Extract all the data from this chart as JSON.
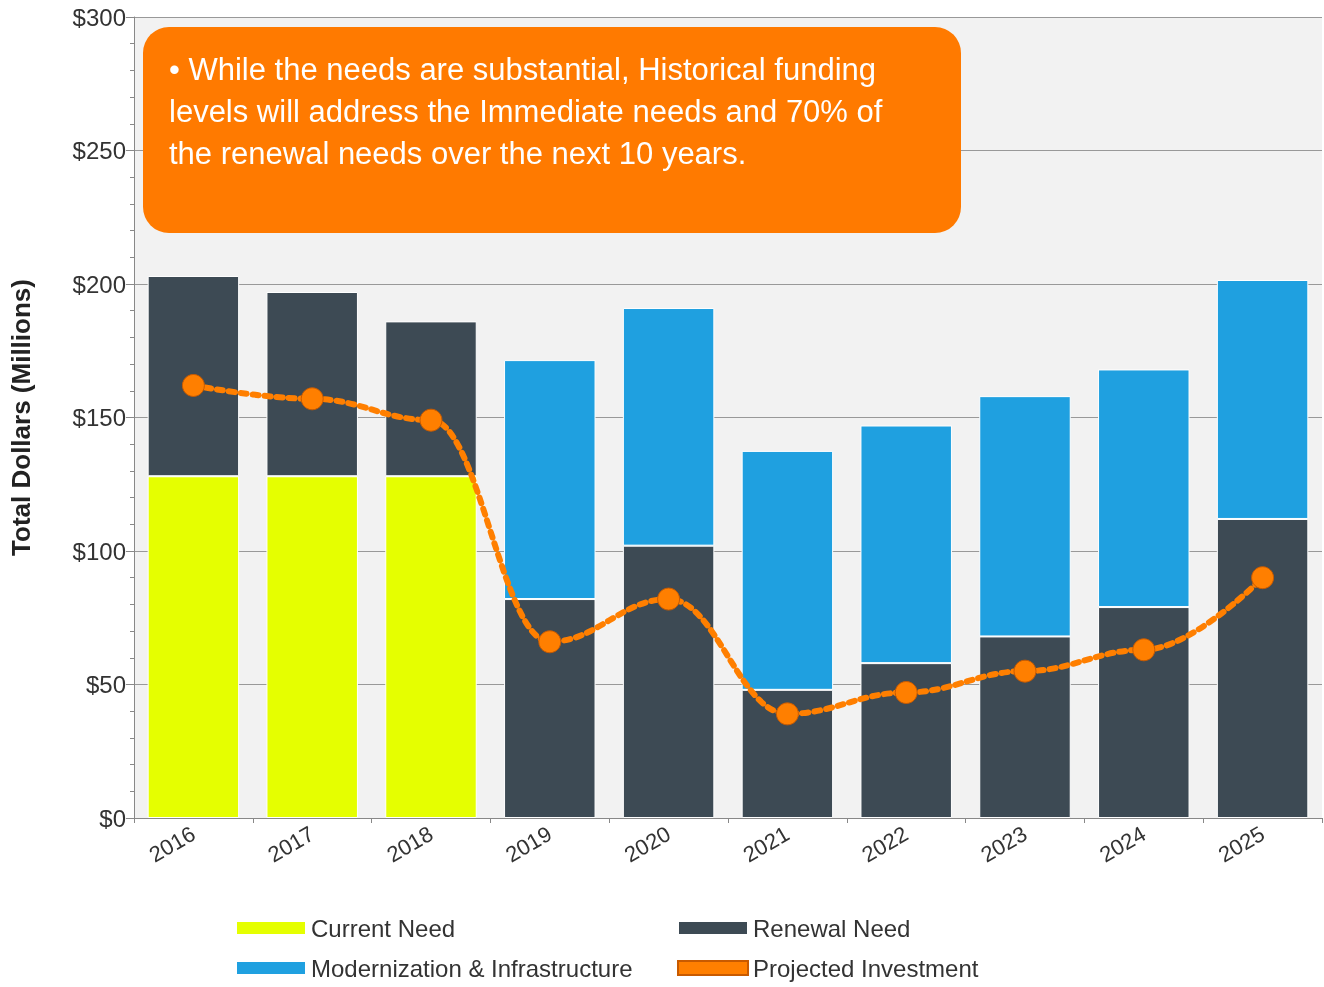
{
  "chart_data": {
    "type": "bar",
    "stacked": true,
    "ylabel": "Total Dollars (Millions)",
    "categories": [
      "2016",
      "2017",
      "2018",
      "2019",
      "2020",
      "2021",
      "2022",
      "2023",
      "2024",
      "2025"
    ],
    "series": [
      {
        "name": "Current Need",
        "color": "#e5ff00",
        "values": [
          128,
          128,
          128,
          null,
          null,
          null,
          null,
          null,
          null,
          null
        ]
      },
      {
        "name": "Renewal Need",
        "color": "#3d4a54",
        "values": [
          75,
          69,
          58,
          82,
          102,
          48,
          58,
          68,
          79,
          112
        ]
      },
      {
        "name": "Modernization & Infrastructure",
        "color": "#1fa0e0",
        "values": [
          null,
          null,
          null,
          89.5,
          89,
          89.5,
          89,
          90,
          89,
          89.5
        ]
      },
      {
        "name": "Projected Investment",
        "type": "line",
        "color": "#ff7f00",
        "marker": "circle",
        "line_style": "dotted",
        "values": [
          162,
          157,
          149,
          66,
          82,
          39,
          47,
          55,
          63,
          90
        ]
      }
    ],
    "ylim": [
      0,
      300
    ],
    "yticks": [
      {
        "value": 0,
        "label": "$0"
      },
      {
        "value": 50,
        "label": "$50"
      },
      {
        "value": 100,
        "label": "$100"
      },
      {
        "value": 150,
        "label": "$150"
      },
      {
        "value": 200,
        "label": "$200"
      },
      {
        "value": 250,
        "label": "$250"
      },
      {
        "value": 300,
        "label": "$300"
      }
    ],
    "grid": "y",
    "legend": "bottom",
    "annotations": [
      "• While the needs are substantial, Historical funding levels will address the Immediate needs and 70% of the renewal needs over the next 10 years."
    ]
  }
}
